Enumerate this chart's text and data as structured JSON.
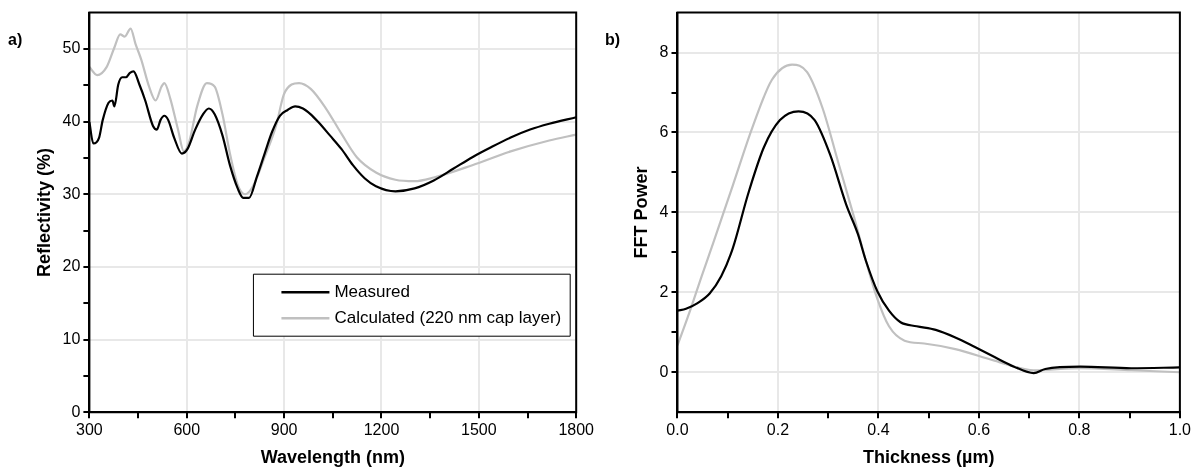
{
  "chart_data": [
    {
      "type": "line",
      "xlabel": "Wavelength (nm)",
      "ylabel": "Reflectivity (%)",
      "annotations": [
        "a)"
      ],
      "xlim": [
        300,
        1800
      ],
      "ylim": [
        0,
        55
      ],
      "xticks": [
        300,
        {
          "value": 450,
          "label": null
        },
        600,
        {
          "value": 750,
          "label": null
        },
        900,
        {
          "value": 1050,
          "label": null
        },
        1200,
        {
          "value": 1350,
          "label": null
        },
        1500,
        {
          "value": 1650,
          "label": null
        },
        1800
      ],
      "yticks": [
        0,
        {
          "value": 5,
          "label": null
        },
        10,
        {
          "value": 15,
          "label": null
        },
        20,
        {
          "value": 25,
          "label": null
        },
        30,
        {
          "value": 35,
          "label": null
        },
        40,
        {
          "value": 45,
          "label": null
        },
        50
      ],
      "grid": true,
      "legend": "bottom right",
      "marker": "none",
      "line_style": "solid",
      "series": [
        {
          "name": "Measured",
          "color": "#000000",
          "x": [
            300,
            312,
            330,
            341,
            359,
            371,
            377,
            389,
            401,
            413,
            425,
            436,
            454,
            472,
            496,
            508,
            519,
            531,
            543,
            561,
            585,
            602,
            626,
            650,
            668,
            686,
            710,
            733,
            757,
            774,
            792,
            816,
            840,
            863,
            887,
            911,
            934,
            958,
            982,
            1006,
            1041,
            1077,
            1112,
            1148,
            1183,
            1243,
            1302,
            1361,
            1421,
            1480,
            1539,
            1598,
            1658,
            1717,
            1800
          ],
          "values": [
            39.9,
            37.0,
            37.8,
            40.2,
            42.6,
            42.9,
            42.1,
            45.1,
            46.1,
            46.1,
            46.7,
            46.9,
            45.1,
            42.9,
            39.4,
            38.9,
            40.2,
            40.8,
            40.2,
            37.8,
            35.6,
            36.2,
            38.9,
            41.0,
            41.8,
            41.0,
            38.1,
            34.0,
            30.8,
            29.5,
            29.5,
            32.4,
            35.6,
            38.6,
            40.8,
            41.6,
            42.1,
            41.8,
            41.0,
            39.9,
            38.1,
            36.2,
            34.0,
            32.2,
            31.1,
            30.4,
            30.8,
            31.9,
            33.5,
            35.1,
            36.5,
            37.8,
            38.9,
            39.7,
            40.6
          ]
        },
        {
          "name": "Calculated (220 nm cap layer)",
          "color": "#c0c0c0",
          "x": [
            300,
            324,
            353,
            377,
            395,
            409,
            427,
            442,
            460,
            484,
            504,
            522,
            531,
            549,
            573,
            591,
            608,
            632,
            662,
            686,
            710,
            733,
            757,
            780,
            804,
            840,
            875,
            899,
            923,
            946,
            982,
            1029,
            1077,
            1124,
            1183,
            1243,
            1302,
            1361,
            1480,
            1598,
            1717,
            1800
          ],
          "values": [
            47.5,
            46.4,
            47.5,
            50.2,
            52.0,
            51.7,
            52.8,
            50.7,
            48.5,
            44.8,
            42.9,
            44.8,
            45.3,
            43.2,
            38.9,
            35.9,
            37.3,
            42.1,
            45.3,
            44.8,
            41.0,
            35.6,
            31.3,
            30.0,
            31.1,
            35.1,
            39.4,
            43.7,
            45.1,
            45.3,
            44.5,
            41.8,
            38.3,
            35.1,
            33.0,
            32.0,
            31.8,
            32.3,
            34.0,
            35.9,
            37.4,
            38.2
          ]
        }
      ]
    },
    {
      "type": "line",
      "xlabel": "Thickness (µm)",
      "ylabel": "FFT Power",
      "annotations": [
        "b)"
      ],
      "xlim": [
        0,
        1
      ],
      "ylim": [
        -1,
        9
      ],
      "xticks": [
        {
          "value": 0,
          "label": "0.0"
        },
        {
          "value": 0.1,
          "label": null
        },
        0.2,
        {
          "value": 0.3,
          "label": null
        },
        0.4,
        {
          "value": 0.5,
          "label": null
        },
        0.6,
        {
          "value": 0.7,
          "label": null
        },
        0.8,
        {
          "value": 0.9,
          "label": null
        },
        {
          "value": 1,
          "label": "1.0"
        }
      ],
      "yticks": [
        0,
        {
          "value": 1,
          "label": null
        },
        2,
        {
          "value": 3,
          "label": null
        },
        4,
        {
          "value": 5,
          "label": null
        },
        6,
        {
          "value": 7,
          "label": null
        },
        8
      ],
      "grid": true,
      "marker": "none",
      "line_style": "solid",
      "series": [
        {
          "color": "#000000",
          "x": [
            0,
            0.017,
            0.04,
            0.064,
            0.087,
            0.11,
            0.141,
            0.172,
            0.204,
            0.241,
            0.273,
            0.304,
            0.336,
            0.359,
            0.375,
            0.398,
            0.421,
            0.444,
            0.476,
            0.514,
            0.553,
            0.592,
            0.631,
            0.67,
            0.709,
            0.732,
            0.802,
            0.903,
            1.0
          ],
          "values": [
            1.54,
            1.59,
            1.73,
            1.97,
            2.4,
            3.1,
            4.48,
            5.63,
            6.31,
            6.53,
            6.31,
            5.44,
            4.19,
            3.46,
            2.79,
            2.02,
            1.54,
            1.25,
            1.15,
            1.06,
            0.87,
            0.63,
            0.38,
            0.14,
            -0.02,
            0.08,
            0.14,
            0.1,
            0.12
          ]
        },
        {
          "color": "#c0c0c0",
          "x": [
            0,
            0.025,
            0.048,
            0.071,
            0.11,
            0.149,
            0.188,
            0.228,
            0.258,
            0.289,
            0.32,
            0.351,
            0.375,
            0.398,
            0.421,
            0.452,
            0.491,
            0.553,
            0.631,
            0.709,
            0.802,
            0.903,
            1.0
          ],
          "values": [
            0.67,
            1.54,
            2.4,
            3.23,
            4.67,
            6.12,
            7.32,
            7.7,
            7.51,
            6.6,
            5.25,
            3.9,
            2.79,
            1.83,
            1.15,
            0.79,
            0.72,
            0.58,
            0.29,
            0.05,
            0.1,
            0.05,
            0.0
          ]
        }
      ]
    }
  ]
}
